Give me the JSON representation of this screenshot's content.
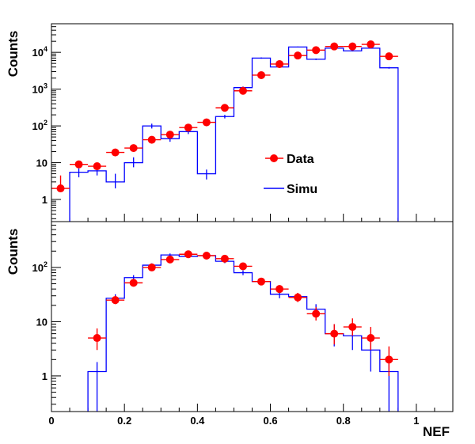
{
  "chart_data": [
    {
      "type": "histogram",
      "ylabel": "Counts",
      "yscale": "log",
      "xlim": [
        0,
        1.1
      ],
      "ylim": [
        0.25,
        60000
      ],
      "yticks": [
        {
          "value": 1,
          "label": "1"
        },
        {
          "value": 10,
          "label": "10"
        },
        {
          "value": 100,
          "label": "10",
          "sup": "2"
        },
        {
          "value": 1000,
          "label": "10",
          "sup": "3"
        },
        {
          "value": 10000,
          "label": "10",
          "sup": "4"
        }
      ],
      "legend": {
        "placement": "center-right",
        "entries": [
          {
            "label": "Data",
            "color": "#ff0000"
          },
          {
            "label": "Simu",
            "color": "#0000ff"
          }
        ]
      },
      "series": [
        {
          "name": "Data",
          "color": "#ff0000",
          "x": [
            0.025,
            0.075,
            0.125,
            0.175,
            0.225,
            0.275,
            0.325,
            0.375,
            0.425,
            0.475,
            0.525,
            0.575,
            0.625,
            0.675,
            0.725,
            0.775,
            0.825,
            0.875,
            0.925
          ],
          "y": [
            2,
            9,
            8,
            19,
            25,
            42,
            58,
            90,
            125,
            310,
            900,
            2400,
            4800,
            8200,
            11500,
            14500,
            14500,
            16500,
            7800
          ],
          "yerr_low": [
            0.4,
            0.1,
            0.1,
            0,
            0,
            0,
            0,
            0,
            0,
            0,
            0,
            0,
            0,
            0,
            0,
            0,
            0,
            0,
            0
          ],
          "yerr_high": [
            2.5,
            0.1,
            0.1,
            0,
            0,
            0,
            0,
            0,
            0,
            0,
            0,
            0,
            0,
            0,
            0,
            0,
            0,
            0,
            0
          ]
        },
        {
          "name": "Simu",
          "color": "#0000ff",
          "bin_edges": [
            0.05,
            0.1,
            0.15,
            0.2,
            0.25,
            0.3,
            0.35,
            0.4,
            0.45,
            0.5,
            0.55,
            0.6,
            0.65,
            0.7,
            0.75,
            0.8,
            0.85,
            0.9,
            0.95
          ],
          "values": [
            5.5,
            6,
            3,
            10,
            100,
            45,
            70,
            5,
            180,
            1100,
            7000,
            4000,
            14000,
            6500,
            13000,
            11000,
            13000,
            3800
          ],
          "yerr_low": [
            1.5,
            1.5,
            1,
            2.5,
            15,
            8,
            10,
            1.5,
            20,
            80,
            300,
            200,
            400,
            300,
            400,
            400,
            400,
            200
          ],
          "yerr_high": [
            1.5,
            1.5,
            2,
            4,
            15,
            8,
            10,
            1.5,
            20,
            80,
            300,
            200,
            400,
            300,
            400,
            400,
            400,
            200
          ]
        }
      ]
    },
    {
      "type": "histogram",
      "ylabel": "Counts",
      "xlabel": "NEF",
      "yscale": "log",
      "xlim": [
        0,
        1.1
      ],
      "ylim": [
        0.22,
        700
      ],
      "xticks": [
        {
          "value": 0,
          "label": "0"
        },
        {
          "value": 0.2,
          "label": "0.2"
        },
        {
          "value": 0.4,
          "label": "0.4"
        },
        {
          "value": 0.6,
          "label": "0.6"
        },
        {
          "value": 0.8,
          "label": "0.8"
        },
        {
          "value": 1.0,
          "label": "1"
        }
      ],
      "yticks": [
        {
          "value": 1,
          "label": "1"
        },
        {
          "value": 10,
          "label": "10"
        },
        {
          "value": 100,
          "label": "10",
          "sup": "2"
        }
      ],
      "series": [
        {
          "name": "Data",
          "color": "#ff0000",
          "x": [
            0.125,
            0.175,
            0.225,
            0.275,
            0.325,
            0.375,
            0.425,
            0.475,
            0.525,
            0.575,
            0.625,
            0.675,
            0.725,
            0.775,
            0.825,
            0.875,
            0.925
          ],
          "y": [
            5,
            25,
            52,
            100,
            140,
            175,
            165,
            145,
            105,
            55,
            40,
            28,
            14,
            6,
            8,
            5,
            2
          ],
          "yerr_low": [
            2,
            4,
            6,
            8,
            10,
            12,
            12,
            10,
            9,
            6,
            6,
            5,
            3.5,
            2.2,
            2.5,
            2,
            1
          ],
          "yerr_high": [
            2.5,
            5,
            7,
            10,
            12,
            14,
            14,
            12,
            10,
            7,
            7,
            6,
            4.5,
            3,
            3.5,
            3,
            1.5
          ]
        },
        {
          "name": "Simu",
          "color": "#0000ff",
          "bin_edges": [
            0.1,
            0.15,
            0.2,
            0.25,
            0.3,
            0.35,
            0.4,
            0.45,
            0.5,
            0.55,
            0.6,
            0.65,
            0.7,
            0.75,
            0.8,
            0.85,
            0.9,
            0.95
          ],
          "values": [
            1.2,
            27,
            65,
            110,
            170,
            160,
            165,
            130,
            80,
            55,
            32,
            29,
            17,
            6,
            5.5,
            3,
            1.2
          ],
          "yerr_low": [
            1.0,
            5,
            7,
            9,
            11,
            11,
            11,
            10,
            8,
            6,
            5,
            5,
            4,
            2.5,
            2.5,
            1.8,
            1.0
          ],
          "yerr_high": [
            0.6,
            5,
            7,
            9,
            11,
            11,
            11,
            10,
            8,
            6,
            5,
            5,
            4,
            3,
            3,
            2,
            0.8
          ]
        }
      ]
    }
  ]
}
